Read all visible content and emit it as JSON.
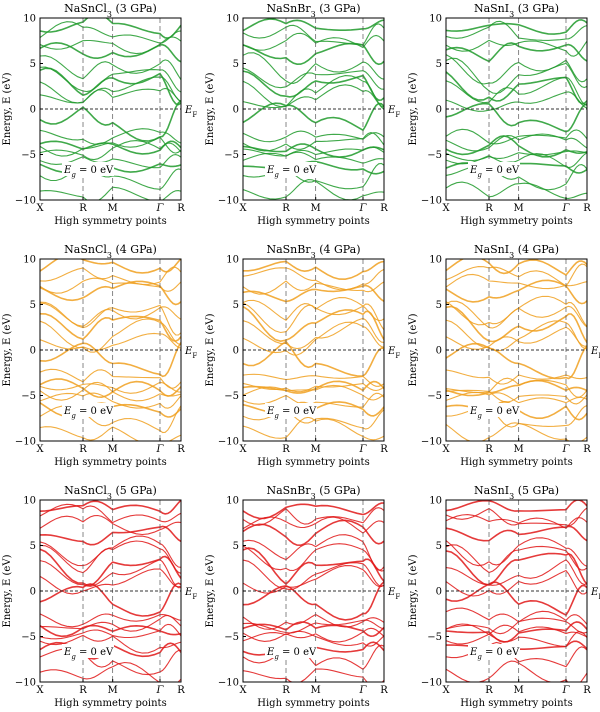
{
  "figure": {
    "y_tick_labels": [
      "10",
      "5",
      "0",
      "−5",
      "−10"
    ],
    "x_tick_labels": [
      "X",
      "R",
      "M",
      "Γ",
      "R"
    ],
    "ylabel": "Energy, E (eV)",
    "xlabel": "High symmetry points",
    "fermi_label": "E",
    "fermi_sub": "F",
    "gap_sub": "g",
    "gap_text": "= 0 eV"
  },
  "chart_data": [
    {
      "type": "line",
      "title": "NaSnCl3 (3 GPa)",
      "title_base": "NaSnCl",
      "title_sub": "3",
      "title_rest": " (3 GPa)",
      "pressure_gpa": 3,
      "compound": "NaSnCl3",
      "color": "#1e9a2a",
      "band_gap_ev": 0,
      "xlabel": "High symmetry points",
      "ylabel": "Energy, E (eV)",
      "ylim": [
        -10,
        10
      ],
      "kpath": [
        "X",
        "R",
        "M",
        "Γ",
        "R"
      ],
      "fermi_level_ev": 0,
      "show_fermi_label": true
    },
    {
      "type": "line",
      "title": "NaSnBr3 (3 GPa)",
      "title_base": "NaSnBr",
      "title_sub": "3",
      "title_rest": " (3 GPa)",
      "pressure_gpa": 3,
      "compound": "NaSnBr3",
      "color": "#1e9a2a",
      "band_gap_ev": 0,
      "xlabel": "High symmetry points",
      "ylabel": "Energy, E (eV)",
      "ylim": [
        -10,
        10
      ],
      "kpath": [
        "X",
        "R",
        "M",
        "Γ",
        "R"
      ],
      "fermi_level_ev": 0,
      "show_fermi_label": true
    },
    {
      "type": "line",
      "title": "NaSnI3 (3 GPa)",
      "title_base": "NaSnI",
      "title_sub": "3",
      "title_rest": " (3 GPa)",
      "pressure_gpa": 3,
      "compound": "NaSnI3",
      "color": "#1e9a2a",
      "band_gap_ev": 0,
      "xlabel": "High symmetry points",
      "ylabel": "Energy, E (eV)",
      "ylim": [
        -10,
        10
      ],
      "kpath": [
        "X",
        "R",
        "M",
        "Γ",
        "R"
      ],
      "fermi_level_ev": 0,
      "show_fermi_label": false
    },
    {
      "type": "line",
      "title": "NaSnCl3 (4 GPa)",
      "title_base": "NaSnCl",
      "title_sub": "3",
      "title_rest": " (4 GPa)",
      "pressure_gpa": 4,
      "compound": "NaSnCl3",
      "color": "#f0a020",
      "band_gap_ev": 0,
      "xlabel": "High symmetry points",
      "ylabel": "Energy, E (eV)",
      "ylim": [
        -10,
        10
      ],
      "kpath": [
        "X",
        "R",
        "M",
        "Γ",
        "R"
      ],
      "fermi_level_ev": 0,
      "show_fermi_label": true
    },
    {
      "type": "line",
      "title": "NaSnBr3 (4 GPa)",
      "title_base": "NaSnBr",
      "title_sub": "3",
      "title_rest": " (4 GPa)",
      "pressure_gpa": 4,
      "compound": "NaSnBr3",
      "color": "#f0a020",
      "band_gap_ev": 0,
      "xlabel": "High symmetry points",
      "ylabel": "Energy, E (eV)",
      "ylim": [
        -10,
        10
      ],
      "kpath": [
        "X",
        "R",
        "M",
        "Γ",
        "R"
      ],
      "fermi_level_ev": 0,
      "show_fermi_label": true
    },
    {
      "type": "line",
      "title": "NaSnI3 (4 GPa)",
      "title_base": "NaSnI",
      "title_sub": "3",
      "title_rest": " (4 GPa)",
      "pressure_gpa": 4,
      "compound": "NaSnI3",
      "color": "#f0a020",
      "band_gap_ev": 0,
      "xlabel": "High symmetry points",
      "ylabel": "Energy, E (eV)",
      "ylim": [
        -10,
        10
      ],
      "kpath": [
        "X",
        "R",
        "M",
        "Γ",
        "R"
      ],
      "fermi_level_ev": 0,
      "show_fermi_label": true
    },
    {
      "type": "line",
      "title": "NaSnCl3 (5 GPa)",
      "title_base": "NaSnCl",
      "title_sub": "3",
      "title_rest": " (5 GPa)",
      "pressure_gpa": 5,
      "compound": "NaSnCl3",
      "color": "#e01818",
      "band_gap_ev": 0,
      "xlabel": "High symmetry points",
      "ylabel": "Energy, E (eV)",
      "ylim": [
        -10,
        10
      ],
      "kpath": [
        "X",
        "R",
        "M",
        "Γ",
        "R"
      ],
      "fermi_level_ev": 0,
      "show_fermi_label": true
    },
    {
      "type": "line",
      "title": "NaSnBr3 (5 GPa)",
      "title_base": "NaSnBr",
      "title_sub": "3",
      "title_rest": " (5 GPa)",
      "pressure_gpa": 5,
      "compound": "NaSnBr3",
      "color": "#e01818",
      "band_gap_ev": 0,
      "xlabel": "High symmetry points",
      "ylabel": "Energy, E (eV)",
      "ylim": [
        -10,
        10
      ],
      "kpath": [
        "X",
        "R",
        "M",
        "Γ",
        "R"
      ],
      "fermi_level_ev": 0,
      "show_fermi_label": true
    },
    {
      "type": "line",
      "title": "NaSnI3 (5 GPa)",
      "title_base": "NaSnI",
      "title_sub": "3",
      "title_rest": " (5 GPa)",
      "pressure_gpa": 5,
      "compound": "NaSnI3",
      "color": "#e01818",
      "band_gap_ev": 0,
      "xlabel": "High symmetry points",
      "ylabel": "Energy, E (eV)",
      "ylim": [
        -10,
        10
      ],
      "kpath": [
        "X",
        "R",
        "M",
        "Γ",
        "R"
      ],
      "fermi_level_ev": 0,
      "show_fermi_label": true
    }
  ]
}
